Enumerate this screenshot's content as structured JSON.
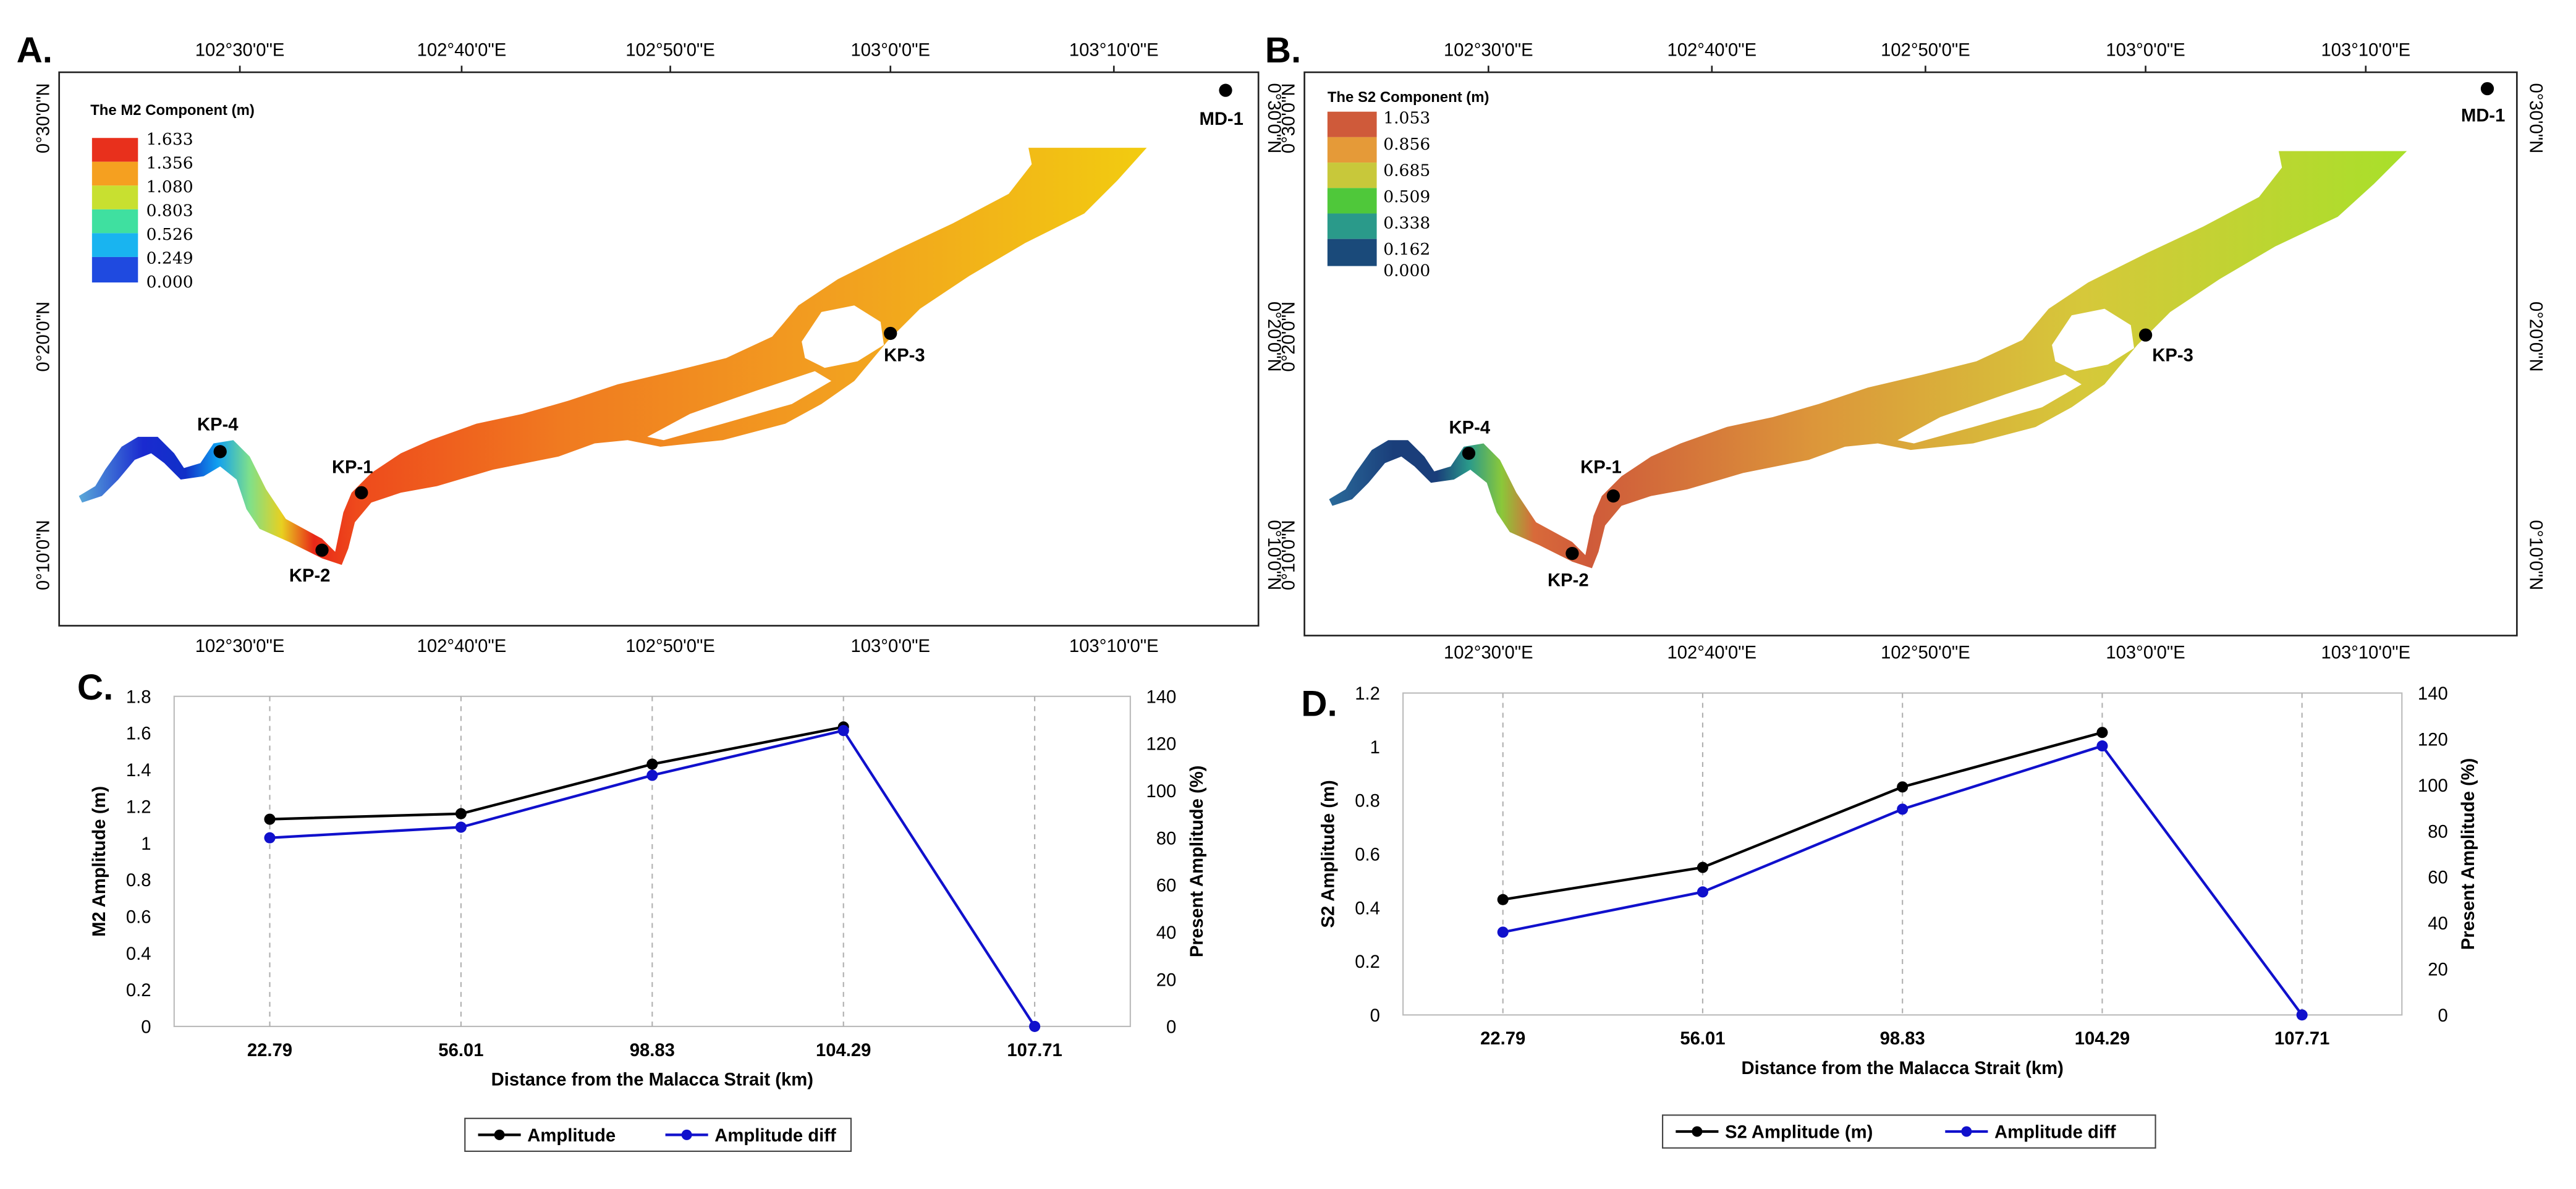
{
  "panels": {
    "map_a": {
      "letter": "A.",
      "legend_title": "The M2 Component (m)",
      "legend_values": [
        "1.633",
        "1.356",
        "1.080",
        "0.803",
        "0.526",
        "0.249",
        "0.000"
      ],
      "legend_colors": [
        "#e8301c",
        "#f5a020",
        "#c8e030",
        "#3fe0a0",
        "#19b4f0",
        "#1f4ae0"
      ],
      "top_ticks": [
        "102°30'0\"E",
        "102°40'0\"E",
        "102°50'0\"E",
        "103°0'0\"E",
        "103°10'0\"E"
      ],
      "bottom_ticks": [
        "102°30'0\"E",
        "102°40'0\"E",
        "102°50'0\"E",
        "103°0'0\"E",
        "103°10'0\"E"
      ],
      "left_ticks": [
        "0°30'0\"N",
        "0°20'0\"N",
        "0°10'0\"N"
      ],
      "right_ticks": [
        "0°30'0\"N",
        "0°20'0\"N",
        "0°10'0\"N"
      ],
      "stations": [
        "MD-1",
        "KP-1",
        "KP-2",
        "KP-3",
        "KP-4"
      ]
    },
    "map_b": {
      "letter": "B.",
      "legend_title": "The S2 Component (m)",
      "legend_values": [
        "1.053",
        "0.856",
        "0.685",
        "0.509",
        "0.338",
        "0.162",
        "0.000"
      ],
      "legend_colors": [
        "#cf5a3a",
        "#e59a38",
        "#c8c83a",
        "#4fc83a",
        "#2a9a8a",
        "#1a4a7a"
      ],
      "top_ticks": [
        "102°30'0\"E",
        "102°40'0\"E",
        "102°50'0\"E",
        "103°0'0\"E",
        "103°10'0\"E"
      ],
      "bottom_ticks": [
        "102°30'0\"E",
        "102°40'0\"E",
        "102°50'0\"E",
        "103°0'0\"E",
        "103°10'0\"E"
      ],
      "left_ticks": [
        "0°30'0\"N",
        "0°20'0\"N",
        "0°10'0\"N"
      ],
      "right_ticks": [
        "0°30'0\"N",
        "0°20'0\"N",
        "0°10'0\"N"
      ],
      "stations": [
        "MD-1",
        "KP-1",
        "KP-2",
        "KP-3",
        "KP-4"
      ]
    }
  },
  "chart_data": [
    {
      "panel": "C.",
      "type": "line",
      "categories": [
        "22.79",
        "56.01",
        "98.83",
        "104.29",
        "107.71"
      ],
      "xlabel": "Distance from the Malacca Strait (km)",
      "ylabel": "M2 Amplitude (m)",
      "ylim": [
        0,
        1.8
      ],
      "yticks": [
        "0",
        "0.2",
        "0.4",
        "0.6",
        "0.8",
        "1",
        "1.2",
        "1.4",
        "1.6",
        "1.8"
      ],
      "y2label": "Present Amplitude (%)",
      "y2lim": [
        0,
        140
      ],
      "y2ticks": [
        "0",
        "20",
        "40",
        "60",
        "80",
        "100",
        "120",
        "140"
      ],
      "grid": "vertical-dashed",
      "legend_position": "bottom-center",
      "series": [
        {
          "name": "Amplitude",
          "axis": "left",
          "color": "#000000",
          "values": [
            1.13,
            1.16,
            1.43,
            1.633,
            null
          ]
        },
        {
          "name": "Amplitude diff",
          "axis": "right",
          "color": "#1010cc",
          "values": [
            80,
            84.5,
            106.5,
            125.5,
            0
          ]
        }
      ]
    },
    {
      "panel": "D.",
      "type": "line",
      "categories": [
        "22.79",
        "56.01",
        "98.83",
        "104.29",
        "107.71"
      ],
      "xlabel": "Distance from the Malacca Strait (km)",
      "ylabel": "S2 Amplitude (m)",
      "ylim": [
        0,
        1.2
      ],
      "yticks": [
        "0",
        "0.2",
        "0.4",
        "0.6",
        "0.8",
        "1",
        "1.2"
      ],
      "y2label": "Present Amplitude (%)",
      "y2lim": [
        0,
        140
      ],
      "y2ticks": [
        "0",
        "20",
        "40",
        "60",
        "80",
        "100",
        "120",
        "140"
      ],
      "grid": "vertical-dashed",
      "legend_position": "bottom-center",
      "series": [
        {
          "name": "S2 Amplitude (m)",
          "axis": "left",
          "color": "#000000",
          "values": [
            0.43,
            0.55,
            0.85,
            1.053,
            null
          ]
        },
        {
          "name": "Amplitude diff",
          "axis": "right",
          "color": "#1010cc",
          "values": [
            36,
            53.5,
            89.5,
            117,
            0
          ]
        }
      ]
    }
  ]
}
